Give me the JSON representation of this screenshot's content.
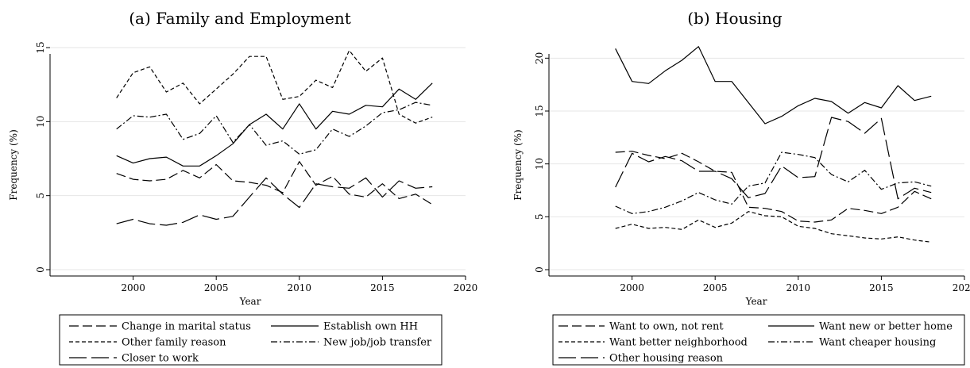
{
  "chart_data": [
    {
      "type": "line",
      "title": "(a) Family and Employment",
      "xlabel": "Year",
      "ylabel": "Frequency (%)",
      "xlim": [
        1995,
        2020
      ],
      "ylim": [
        0,
        15
      ],
      "xticks": [
        "2000",
        "2005",
        "2010",
        "2015",
        "2020"
      ],
      "yticks": [
        "0",
        "5",
        "10",
        "15"
      ],
      "grid": true,
      "legend_position": "bottom",
      "x": [
        1999,
        2000,
        2001,
        2002,
        2003,
        2004,
        2005,
        2006,
        2007,
        2008,
        2009,
        2010,
        2011,
        2012,
        2013,
        2014,
        2015,
        2016,
        2017,
        2018
      ],
      "series": [
        {
          "name": "Change in marital status",
          "dash": "dash",
          "values": [
            6.5,
            6.1,
            6.0,
            6.1,
            6.7,
            6.2,
            7.1,
            6.0,
            5.9,
            5.7,
            5.2,
            7.3,
            5.7,
            6.3,
            5.1,
            4.9,
            5.8,
            4.8,
            5.1,
            4.4
          ]
        },
        {
          "name": "Establish own HH",
          "dash": "solid",
          "values": [
            7.7,
            7.2,
            7.5,
            7.6,
            7.0,
            7.0,
            7.7,
            8.5,
            9.8,
            10.5,
            9.5,
            11.2,
            9.5,
            10.7,
            10.5,
            11.1,
            11.0,
            12.2,
            11.5,
            12.6
          ]
        },
        {
          "name": "Other family reason",
          "dash": "shortdash",
          "values": [
            11.6,
            13.3,
            13.7,
            12.0,
            12.6,
            11.2,
            12.2,
            13.2,
            14.4,
            14.4,
            11.5,
            11.7,
            12.8,
            12.3,
            14.8,
            13.4,
            14.3,
            10.5,
            9.9,
            10.3
          ]
        },
        {
          "name": "New job/job transfer",
          "dash": "dashdot",
          "values": [
            9.5,
            10.4,
            10.3,
            10.5,
            8.8,
            9.2,
            10.4,
            8.6,
            9.8,
            8.4,
            8.7,
            7.8,
            8.1,
            9.5,
            9.0,
            9.7,
            10.6,
            10.8,
            11.3,
            11.1
          ]
        },
        {
          "name": "Closer to work",
          "dash": "longdash",
          "values": [
            3.1,
            3.4,
            3.1,
            3.0,
            3.2,
            3.7,
            3.4,
            3.6,
            4.9,
            6.2,
            5.1,
            4.2,
            5.8,
            5.6,
            5.5,
            6.2,
            4.9,
            6.0,
            5.5,
            5.6
          ]
        }
      ]
    },
    {
      "type": "line",
      "title": "(b) Housing",
      "xlabel": "Year",
      "ylabel": "Frequency (%)",
      "xlim": [
        1995,
        2020
      ],
      "ylim": [
        0,
        21
      ],
      "xticks": [
        "2000",
        "2005",
        "2010",
        "2015",
        "2020"
      ],
      "yticks": [
        "0",
        "5",
        "10",
        "15",
        "20"
      ],
      "grid": true,
      "legend_position": "bottom",
      "x": [
        1999,
        2000,
        2001,
        2002,
        2003,
        2004,
        2005,
        2006,
        2007,
        2008,
        2009,
        2010,
        2011,
        2012,
        2013,
        2014,
        2015,
        2016,
        2017,
        2018
      ],
      "series": [
        {
          "name": "Want to own, not rent",
          "dash": "dash",
          "values": [
            11.1,
            11.2,
            10.8,
            10.5,
            11.0,
            10.2,
            9.3,
            9.2,
            5.9,
            5.8,
            5.5,
            4.6,
            4.5,
            4.7,
            5.8,
            5.6,
            5.3,
            5.9,
            7.4,
            6.7
          ]
        },
        {
          "name": "Want new or better home",
          "dash": "solid",
          "values": [
            20.9,
            17.8,
            17.6,
            18.8,
            19.8,
            21.1,
            17.8,
            17.8,
            15.8,
            13.8,
            14.5,
            15.5,
            16.2,
            15.9,
            14.8,
            15.8,
            15.3,
            17.4,
            16.0,
            16.4
          ]
        },
        {
          "name": "Want better neighborhood",
          "dash": "shortdash",
          "values": [
            3.9,
            4.3,
            3.9,
            4.0,
            3.8,
            4.7,
            4.0,
            4.4,
            5.5,
            5.1,
            5.0,
            4.1,
            3.9,
            3.4,
            3.2,
            3.0,
            2.9,
            3.1,
            2.8,
            2.6
          ]
        },
        {
          "name": "Want cheaper housing",
          "dash": "dashdot",
          "values": [
            6.0,
            5.3,
            5.5,
            5.9,
            6.5,
            7.3,
            6.6,
            6.2,
            7.9,
            8.2,
            11.1,
            10.9,
            10.6,
            9.0,
            8.3,
            9.4,
            7.6,
            8.2,
            8.3,
            7.9
          ]
        },
        {
          "name": "Other housing reason",
          "dash": "longdash",
          "values": [
            7.8,
            11.0,
            10.2,
            10.7,
            10.3,
            9.3,
            9.3,
            8.6,
            6.8,
            7.2,
            9.8,
            8.7,
            8.8,
            14.4,
            14.0,
            12.9,
            14.3,
            6.7,
            7.7,
            7.3
          ]
        }
      ]
    }
  ]
}
